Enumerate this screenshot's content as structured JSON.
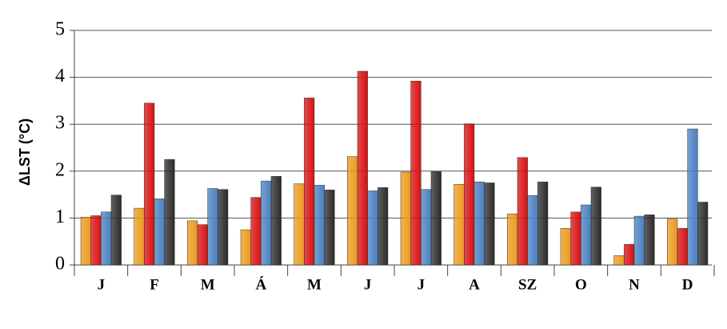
{
  "chart_data": {
    "type": "bar",
    "y_label": "ΔLST (°C)",
    "categories": [
      "J",
      "F",
      "M",
      "Á",
      "M",
      "J",
      "J",
      "A",
      "SZ",
      "O",
      "N",
      "D"
    ],
    "series": [
      {
        "color": "#eb9a1c",
        "values": [
          1.02,
          1.21,
          0.94,
          0.75,
          1.73,
          2.31,
          1.98,
          1.72,
          1.09,
          0.78,
          0.2,
          0.98
        ]
      },
      {
        "color": "#d81010",
        "values": [
          1.05,
          3.45,
          0.86,
          1.44,
          3.56,
          4.13,
          3.92,
          3.01,
          2.29,
          1.13,
          0.44,
          0.78
        ]
      },
      {
        "color": "#4a80c0",
        "values": [
          1.13,
          1.41,
          1.63,
          1.79,
          1.7,
          1.58,
          1.61,
          1.77,
          1.48,
          1.28,
          1.04,
          2.9
        ]
      },
      {
        "color": "#2b2b2b",
        "values": [
          1.49,
          2.25,
          1.61,
          1.89,
          1.6,
          1.65,
          1.99,
          1.75,
          1.77,
          1.66,
          1.07,
          1.34
        ]
      }
    ],
    "ylim": [
      0,
      5
    ],
    "yticks": [
      0,
      1,
      2,
      3,
      4,
      5
    ],
    "grid": true
  }
}
